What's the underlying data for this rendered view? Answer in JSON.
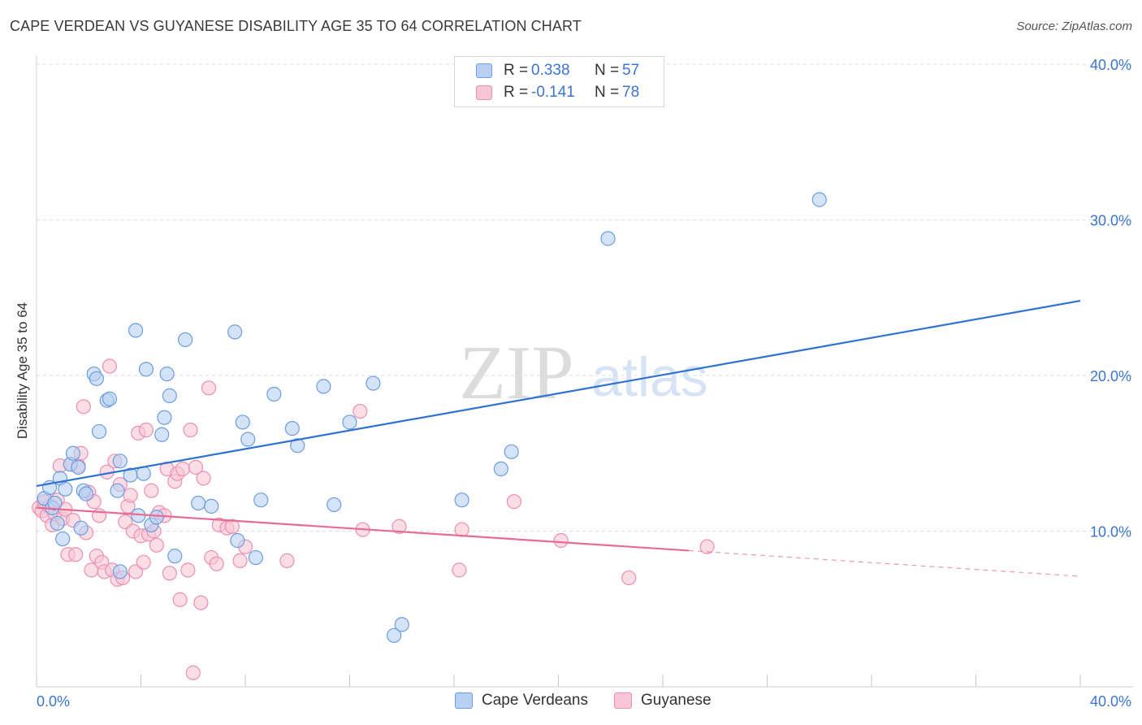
{
  "header": {
    "title": "CAPE VERDEAN VS GUYANESE DISABILITY AGE 35 TO 64 CORRELATION CHART",
    "source": "Source: ZipAtlas.com"
  },
  "watermark": {
    "zip": "ZIP",
    "atlas": "atlas"
  },
  "legend_top": {
    "rows": [
      {
        "r_label": "R =",
        "r_value": "0.338",
        "n_label": "N =",
        "n_value": "57"
      },
      {
        "r_label": "R =",
        "r_value": "-0.141",
        "n_label": "N =",
        "n_value": "78"
      }
    ]
  },
  "legend_bottom": {
    "items": [
      {
        "label": "Cape Verdeans"
      },
      {
        "label": "Guyanese"
      }
    ]
  },
  "colors": {
    "blue_fill": "#b8d1f3",
    "blue_stroke": "#6b9de0",
    "blue_line": "#2f72d1",
    "pink_fill": "#f8c6d6",
    "pink_stroke": "#ec8fae",
    "pink_line": "#e86b95",
    "tick_label": "#3b75d0",
    "grid": "#dddddd"
  },
  "chart_data": {
    "type": "scatter",
    "title": "CAPE VERDEAN VS GUYANESE DISABILITY AGE 35 TO 64 CORRELATION CHART",
    "xlabel": "",
    "ylabel": "Disability Age 35 to 64",
    "xlim": [
      0,
      40
    ],
    "ylim": [
      0,
      40
    ],
    "x_tick_labels": [
      "0.0%",
      "40.0%"
    ],
    "y_ticks": [
      10,
      20,
      30,
      40
    ],
    "y_tick_labels": [
      "10.0%",
      "20.0%",
      "30.0%",
      "40.0%"
    ],
    "grid": true,
    "series": [
      {
        "name": "Cape Verdeans",
        "r": 0.338,
        "n": 57,
        "trend": {
          "x": [
            0,
            40
          ],
          "y": [
            12.9,
            24.8
          ],
          "dashed_from": null
        },
        "points": [
          [
            0.3,
            12.1
          ],
          [
            0.5,
            12.8
          ],
          [
            0.6,
            11.5
          ],
          [
            0.7,
            11.8
          ],
          [
            0.8,
            10.5
          ],
          [
            0.9,
            13.4
          ],
          [
            1.0,
            9.5
          ],
          [
            1.1,
            12.7
          ],
          [
            1.3,
            14.3
          ],
          [
            1.4,
            15.0
          ],
          [
            1.6,
            14.1
          ],
          [
            1.7,
            10.2
          ],
          [
            1.8,
            12.6
          ],
          [
            1.9,
            12.4
          ],
          [
            2.2,
            20.1
          ],
          [
            2.3,
            19.8
          ],
          [
            2.4,
            16.4
          ],
          [
            2.7,
            18.4
          ],
          [
            2.8,
            18.5
          ],
          [
            3.1,
            12.6
          ],
          [
            3.2,
            7.4
          ],
          [
            3.2,
            14.5
          ],
          [
            3.6,
            13.6
          ],
          [
            3.8,
            22.9
          ],
          [
            3.9,
            11.0
          ],
          [
            4.1,
            13.7
          ],
          [
            4.2,
            20.4
          ],
          [
            4.4,
            10.4
          ],
          [
            4.6,
            10.9
          ],
          [
            4.8,
            16.2
          ],
          [
            4.9,
            17.3
          ],
          [
            5.0,
            20.1
          ],
          [
            5.1,
            18.7
          ],
          [
            5.3,
            8.4
          ],
          [
            5.7,
            22.3
          ],
          [
            6.2,
            11.8
          ],
          [
            6.7,
            11.6
          ],
          [
            7.6,
            22.8
          ],
          [
            7.7,
            9.4
          ],
          [
            7.9,
            17.0
          ],
          [
            8.1,
            15.9
          ],
          [
            8.4,
            8.3
          ],
          [
            8.6,
            12.0
          ],
          [
            9.1,
            18.8
          ],
          [
            9.8,
            16.6
          ],
          [
            10.0,
            15.5
          ],
          [
            11.0,
            19.3
          ],
          [
            11.4,
            11.7
          ],
          [
            12.0,
            17.0
          ],
          [
            12.9,
            19.5
          ],
          [
            13.7,
            3.3
          ],
          [
            14.0,
            4.0
          ],
          [
            16.3,
            12.0
          ],
          [
            17.8,
            14.0
          ],
          [
            18.2,
            15.1
          ],
          [
            21.9,
            28.8
          ],
          [
            30.0,
            31.3
          ]
        ]
      },
      {
        "name": "Guyanese",
        "r": -0.141,
        "n": 78,
        "trend": {
          "x": [
            0,
            40
          ],
          "y": [
            11.5,
            7.1
          ],
          "dashed_from": 25.0
        },
        "points": [
          [
            0.1,
            11.5
          ],
          [
            0.2,
            11.3
          ],
          [
            0.3,
            11.9
          ],
          [
            0.4,
            11.0
          ],
          [
            0.5,
            11.6
          ],
          [
            0.6,
            10.4
          ],
          [
            0.7,
            11.1
          ],
          [
            0.8,
            12.0
          ],
          [
            0.9,
            14.2
          ],
          [
            1.0,
            10.8
          ],
          [
            1.1,
            11.4
          ],
          [
            1.2,
            8.5
          ],
          [
            1.3,
            14.3
          ],
          [
            1.4,
            10.7
          ],
          [
            1.5,
            8.5
          ],
          [
            1.6,
            14.2
          ],
          [
            1.7,
            15.0
          ],
          [
            1.8,
            18.0
          ],
          [
            1.9,
            9.9
          ],
          [
            2.0,
            12.5
          ],
          [
            2.1,
            7.5
          ],
          [
            2.2,
            11.9
          ],
          [
            2.3,
            8.4
          ],
          [
            2.4,
            11.0
          ],
          [
            2.5,
            8.0
          ],
          [
            2.6,
            7.4
          ],
          [
            2.7,
            13.8
          ],
          [
            2.8,
            20.6
          ],
          [
            2.9,
            7.5
          ],
          [
            3.0,
            14.5
          ],
          [
            3.1,
            6.9
          ],
          [
            3.2,
            13.0
          ],
          [
            3.3,
            7.0
          ],
          [
            3.4,
            10.6
          ],
          [
            3.5,
            11.6
          ],
          [
            3.6,
            12.3
          ],
          [
            3.7,
            10.0
          ],
          [
            3.8,
            7.4
          ],
          [
            3.9,
            16.3
          ],
          [
            4.0,
            9.7
          ],
          [
            4.1,
            8.0
          ],
          [
            4.2,
            16.5
          ],
          [
            4.3,
            9.8
          ],
          [
            4.4,
            12.6
          ],
          [
            4.5,
            10.0
          ],
          [
            4.6,
            9.1
          ],
          [
            4.7,
            11.2
          ],
          [
            4.9,
            11.0
          ],
          [
            5.0,
            14.0
          ],
          [
            5.1,
            7.3
          ],
          [
            5.3,
            13.2
          ],
          [
            5.4,
            13.7
          ],
          [
            5.5,
            5.6
          ],
          [
            5.6,
            14.0
          ],
          [
            5.8,
            7.5
          ],
          [
            5.9,
            16.5
          ],
          [
            6.0,
            0.9
          ],
          [
            6.1,
            14.1
          ],
          [
            6.3,
            5.4
          ],
          [
            6.4,
            13.4
          ],
          [
            6.6,
            19.2
          ],
          [
            6.7,
            8.3
          ],
          [
            6.9,
            7.9
          ],
          [
            7.0,
            10.4
          ],
          [
            7.3,
            10.2
          ],
          [
            7.5,
            10.3
          ],
          [
            7.8,
            8.1
          ],
          [
            8.0,
            9.0
          ],
          [
            9.6,
            8.1
          ],
          [
            12.4,
            17.7
          ],
          [
            12.5,
            10.1
          ],
          [
            13.9,
            10.3
          ],
          [
            16.2,
            7.5
          ],
          [
            16.3,
            10.1
          ],
          [
            18.3,
            11.9
          ],
          [
            20.1,
            9.4
          ],
          [
            22.7,
            7.0
          ],
          [
            25.7,
            9.0
          ]
        ]
      }
    ]
  }
}
